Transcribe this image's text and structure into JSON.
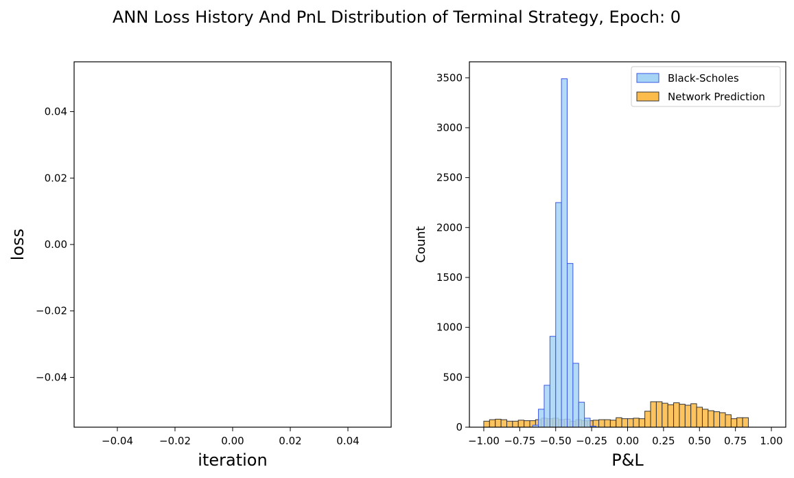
{
  "figure": {
    "title": "ANN Loss History And PnL Distribution of Terminal Strategy, Epoch: 0"
  },
  "chart_data": [
    {
      "type": "line",
      "xlabel": "iteration",
      "ylabel": "loss",
      "xlim": [
        -0.055,
        0.055
      ],
      "ylim": [
        -0.055,
        0.055
      ],
      "xticks": [
        -0.04,
        -0.02,
        0.0,
        0.02,
        0.04
      ],
      "xtick_labels": [
        "−0.04",
        "−0.02",
        "0.00",
        "0.02",
        "0.04"
      ],
      "yticks": [
        -0.04,
        -0.02,
        0.0,
        0.02,
        0.04
      ],
      "ytick_labels": [
        "−0.04",
        "−0.02",
        "0.00",
        "0.02",
        "0.04"
      ],
      "series": [],
      "grid": false
    },
    {
      "type": "bar",
      "subtype": "histogram",
      "xlabel": "P&L",
      "ylabel": "Count",
      "xlim": [
        -1.1,
        1.1
      ],
      "ylim": [
        0,
        3660
      ],
      "xticks": [
        -1.0,
        -0.75,
        -0.5,
        -0.25,
        0.0,
        0.25,
        0.5,
        0.75,
        1.0
      ],
      "xtick_labels": [
        "−1.00",
        "−0.75",
        "−0.50",
        "−0.25",
        "0.00",
        "0.25",
        "0.50",
        "0.75",
        "1.00"
      ],
      "yticks": [
        0,
        500,
        1000,
        1500,
        2000,
        2500,
        3000,
        3500
      ],
      "ytick_labels": [
        "0",
        "500",
        "1000",
        "1500",
        "2000",
        "2500",
        "3000",
        "3500"
      ],
      "legend_position": "top-right",
      "grid": false,
      "series": [
        {
          "name": "Black-Scholes",
          "color": "#a6d4f5",
          "edge_color": "#3a56e6",
          "bin_start": -0.66,
          "bin_width": 0.04,
          "values": [
            20,
            180,
            420,
            910,
            2250,
            3490,
            1640,
            640,
            250,
            90,
            10
          ]
        },
        {
          "name": "Network Prediction",
          "color": "#fcbc4c",
          "edge_color": "#333333",
          "bin_start": -1.0,
          "bin_width": 0.04,
          "values": [
            60,
            75,
            80,
            75,
            60,
            60,
            70,
            65,
            65,
            75,
            90,
            85,
            90,
            75,
            80,
            60,
            75,
            65,
            65,
            70,
            75,
            75,
            70,
            95,
            85,
            85,
            90,
            85,
            160,
            255,
            255,
            240,
            225,
            245,
            230,
            220,
            235,
            200,
            180,
            165,
            155,
            145,
            125,
            85,
            95,
            95
          ]
        }
      ]
    }
  ]
}
